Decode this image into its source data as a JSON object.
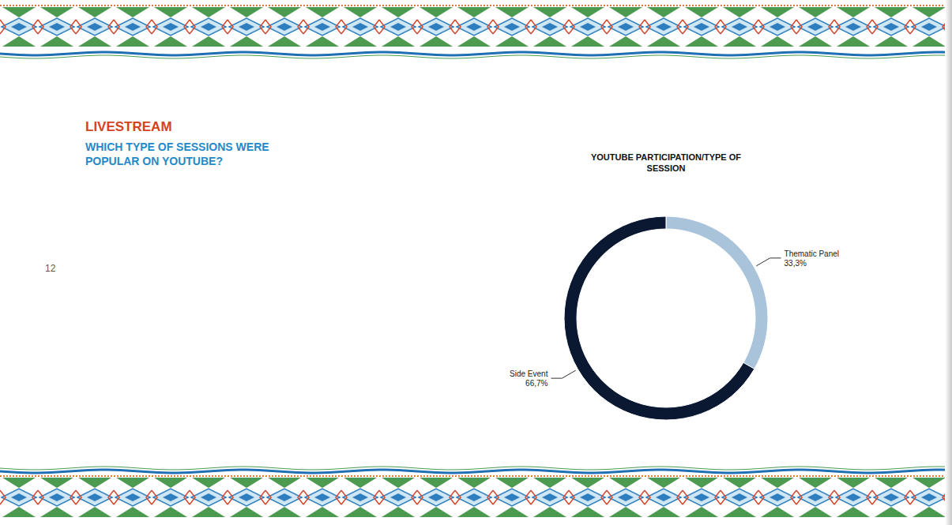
{
  "page": {
    "section": "LIVESTREAM",
    "heading": "WHICH TYPE OF SESSIONS WERE POPULAR ON YOUTUBE?",
    "page_number": 12
  },
  "chart_data": {
    "type": "pie",
    "title": "YOUTUBE PARTICIPATION/TYPE OF SESSION",
    "categories": [
      "Thematic Panel",
      "Side Event"
    ],
    "values": [
      33.3,
      66.7
    ],
    "value_labels": [
      "33,3%",
      "66,7%"
    ],
    "colors": [
      "#a9c3da",
      "#0b1831"
    ],
    "data_labels": true
  }
}
